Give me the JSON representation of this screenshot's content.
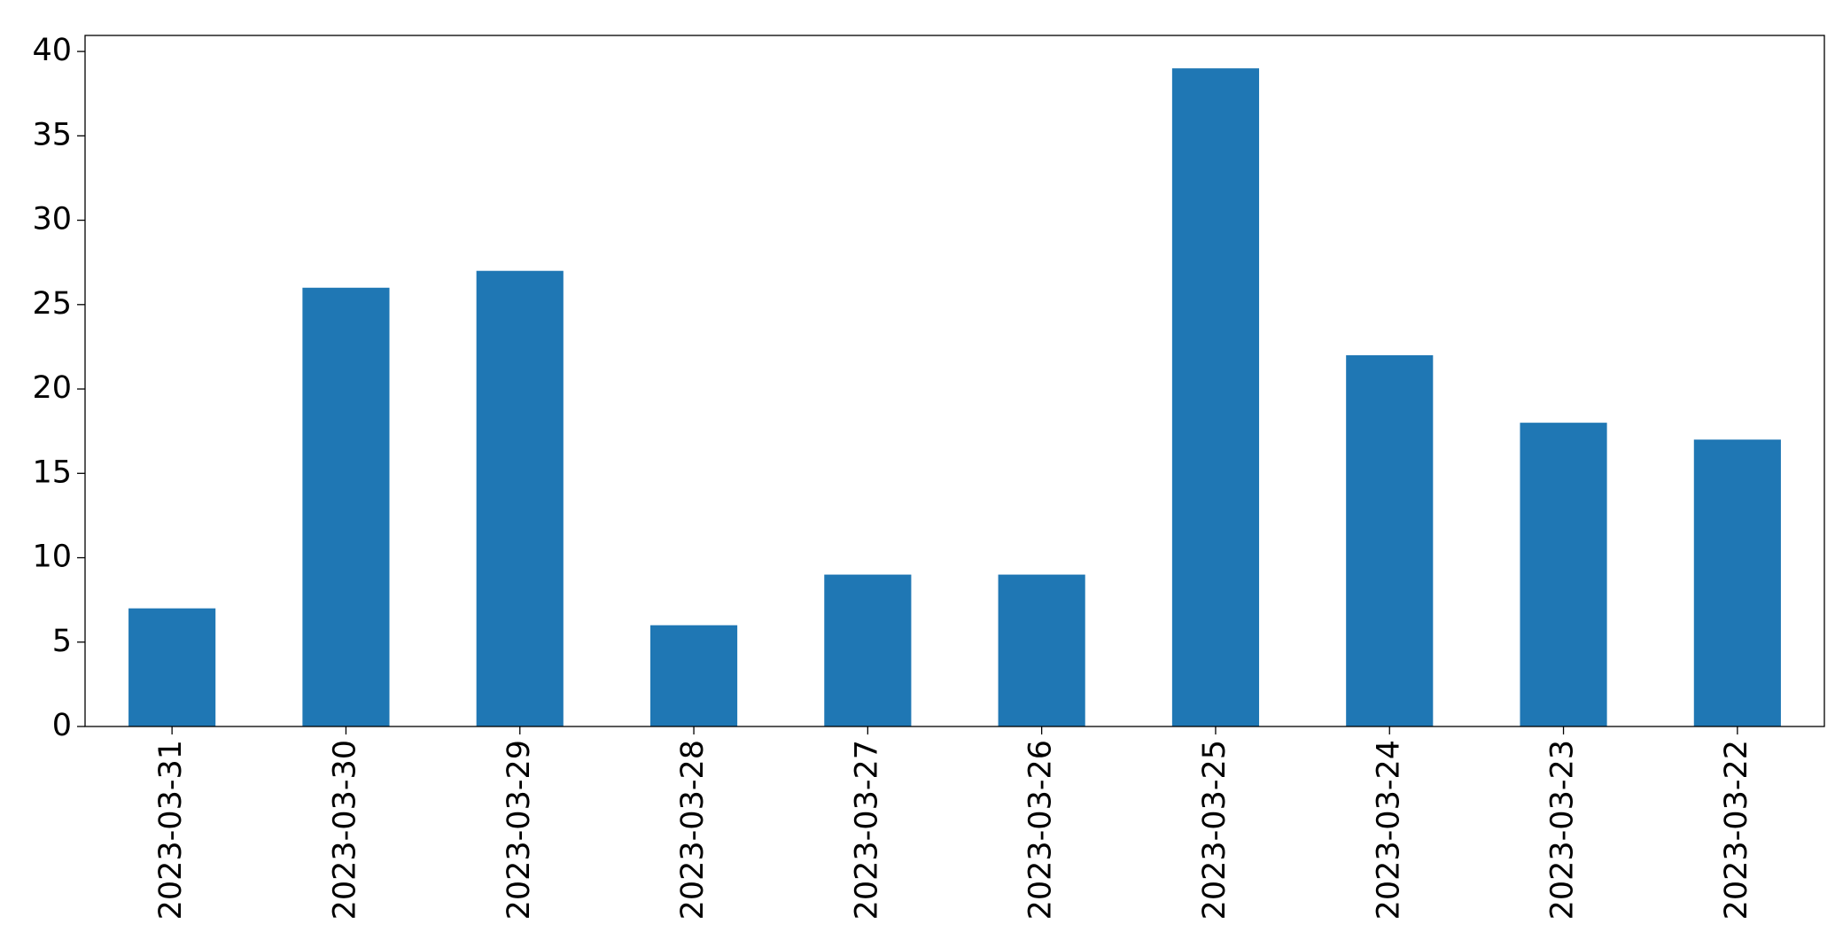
{
  "chart_data": {
    "type": "bar",
    "categories": [
      "2023-03-31",
      "2023-03-30",
      "2023-03-29",
      "2023-03-28",
      "2023-03-27",
      "2023-03-26",
      "2023-03-25",
      "2023-03-24",
      "2023-03-23",
      "2023-03-22"
    ],
    "values": [
      7,
      26,
      27,
      6,
      9,
      9,
      39,
      22,
      18,
      17
    ],
    "color": "#1f77b4",
    "ylim": [
      0,
      40.95
    ],
    "yticks": [
      0,
      5,
      10,
      15,
      20,
      25,
      30,
      35,
      40
    ],
    "grid": false
  }
}
